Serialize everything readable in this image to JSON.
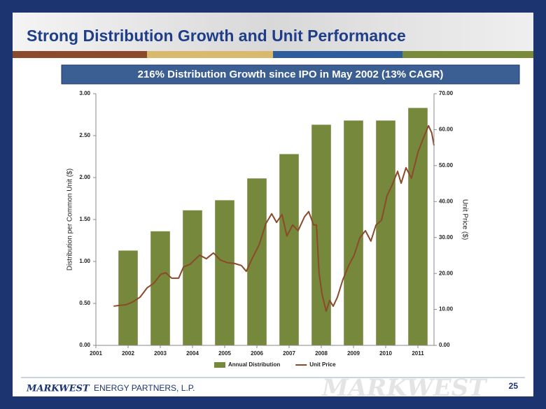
{
  "chart_data": {
    "type": "combo",
    "title": "Strong Distribution Growth and Unit Performance",
    "subtitle": "216% Distribution Growth since IPO in May 2002 (13% CAGR)",
    "y_label": "Distribution per Common Unit ($)",
    "y2_label": "Unit Price ($)",
    "xlim": [
      2001,
      2011.5
    ],
    "xticks": [
      2001,
      2002,
      2003,
      2004,
      2005,
      2006,
      2007,
      2008,
      2009,
      2010,
      2011
    ],
    "ylim": [
      0,
      3
    ],
    "yticks": [
      {
        "value": 0,
        "label": "0.00"
      },
      {
        "value": 0.5,
        "label": "0.50"
      },
      {
        "value": 1,
        "label": "1.00"
      },
      {
        "value": 1.5,
        "label": "1.50"
      },
      {
        "value": 2,
        "label": "2.00"
      },
      {
        "value": 2.5,
        "label": "2.50"
      },
      {
        "value": 3,
        "label": "3.00"
      }
    ],
    "y2lim": [
      0,
      70
    ],
    "y2ticks": [
      {
        "value": 0,
        "label": "0.00"
      },
      {
        "value": 10,
        "label": "10.00"
      },
      {
        "value": 20,
        "label": "20.00"
      },
      {
        "value": 30,
        "label": "30.00"
      },
      {
        "value": 40,
        "label": "40.00"
      },
      {
        "value": 50,
        "label": "50.00"
      },
      {
        "value": 60,
        "label": "60.00"
      },
      {
        "value": 70,
        "label": "70.00"
      }
    ],
    "legend": "bottom",
    "series": [
      {
        "name": "Annual Distribution",
        "type": "bar",
        "color": "#76883b",
        "x": [
          2002,
          2003,
          2004,
          2005,
          2006,
          2007,
          2008,
          2009,
          2010,
          2011
        ],
        "values": [
          1.13,
          1.36,
          1.61,
          1.73,
          1.99,
          2.28,
          2.63,
          2.68,
          2.68,
          2.83
        ]
      },
      {
        "name": "Unit Price",
        "type": "line",
        "axis": "y2",
        "color": "#8b4a2a",
        "x": [
          2001.55,
          2001.72,
          2001.93,
          2002.15,
          2002.37,
          2002.59,
          2002.8,
          2003.02,
          2003.17,
          2003.35,
          2003.57,
          2003.72,
          2003.93,
          2004.22,
          2004.43,
          2004.65,
          2004.87,
          2005.09,
          2005.3,
          2005.52,
          2005.67,
          2005.85,
          2006.07,
          2006.28,
          2006.46,
          2006.61,
          2006.78,
          2006.93,
          2007.11,
          2007.28,
          2007.48,
          2007.61,
          2007.76,
          2007.85,
          2007.93,
          2008.02,
          2008.15,
          2008.26,
          2008.37,
          2008.5,
          2008.67,
          2008.85,
          2009.02,
          2009.2,
          2009.37,
          2009.54,
          2009.7,
          2009.87,
          2010.04,
          2010.2,
          2010.37,
          2010.48,
          2010.63,
          2010.8,
          2011.0,
          2011.15,
          2011.33,
          2011.43,
          2011.5
        ],
        "values": [
          10.9,
          11.1,
          11.3,
          12.1,
          13.4,
          16.0,
          17.3,
          19.8,
          20.2,
          18.7,
          18.7,
          21.8,
          22.6,
          25.1,
          24.1,
          25.7,
          23.7,
          23.0,
          22.8,
          22.2,
          20.6,
          24.1,
          28.0,
          33.9,
          36.6,
          34.2,
          36.4,
          30.4,
          33.5,
          31.9,
          35.8,
          37.2,
          33.5,
          33.5,
          20.2,
          14.4,
          9.5,
          12.5,
          10.9,
          13.4,
          18.3,
          22.2,
          25.1,
          30.0,
          31.9,
          29.0,
          33.5,
          34.8,
          41.6,
          44.6,
          48.4,
          45.1,
          49.4,
          46.5,
          53.7,
          57.2,
          61.1,
          59.1,
          55.6
        ]
      }
    ]
  },
  "footer": {
    "logo": "MARKWEST",
    "company": "ENERGY PARTNERS, L.P.",
    "page": 25
  }
}
